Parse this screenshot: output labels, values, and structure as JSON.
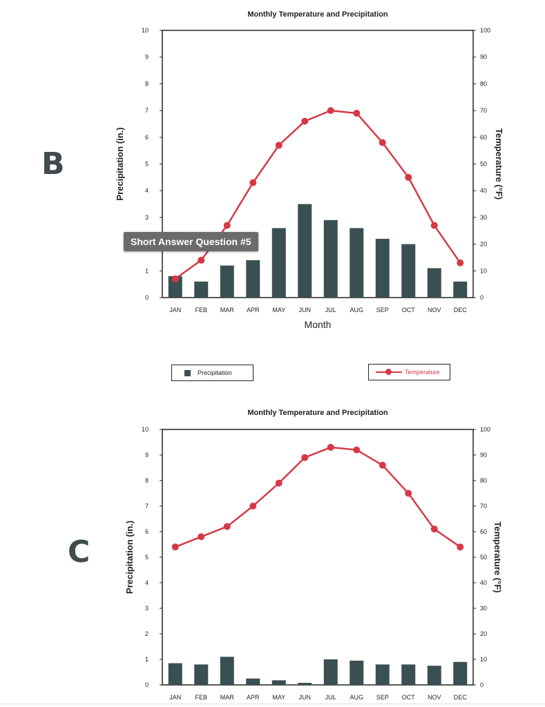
{
  "tooltip": {
    "text": "Short Answer Question #5"
  },
  "legend": {
    "precip_label": "Precipitation",
    "temp_label": "Temperature"
  },
  "colors": {
    "bar": "#3a4f52",
    "line": "#d73845",
    "axis": "#222222"
  },
  "chart_data": [
    {
      "panel": "B",
      "type": "bar+line",
      "title": "Monthly Temperature and Precipitation",
      "xlabel": "Month",
      "ylabel_left": "Precipitation (in.)",
      "ylabel_right": "Temperature (°F)",
      "categories": [
        "JAN",
        "FEB",
        "MAR",
        "APR",
        "MAY",
        "JUN",
        "JUL",
        "AUG",
        "SEP",
        "OCT",
        "NOV",
        "DEC"
      ],
      "ylim_left": [
        0,
        10
      ],
      "ylim_right": [
        0,
        100
      ],
      "series": [
        {
          "name": "Precipitation",
          "kind": "bar",
          "axis": "left",
          "values": [
            0.8,
            0.6,
            1.2,
            1.4,
            2.6,
            3.5,
            2.9,
            2.6,
            2.2,
            2.0,
            1.1,
            0.6
          ]
        },
        {
          "name": "Temperature",
          "kind": "line",
          "axis": "right",
          "values": [
            7,
            14,
            27,
            43,
            57,
            66,
            70,
            69,
            58,
            45,
            27,
            13
          ]
        }
      ]
    },
    {
      "panel": "C",
      "type": "bar+line",
      "title": "Monthly Temperature and Precipitation",
      "xlabel": "",
      "ylabel_left": "Precipitation (in.)",
      "ylabel_right": "Temperature (°F)",
      "categories": [
        "JAN",
        "FEB",
        "MAR",
        "APR",
        "MAY",
        "JUN",
        "JUL",
        "AUG",
        "SEP",
        "OCT",
        "NOV",
        "DEC"
      ],
      "ylim_left": [
        0,
        10
      ],
      "ylim_right": [
        0,
        100
      ],
      "series": [
        {
          "name": "Precipitation",
          "kind": "bar",
          "axis": "left",
          "values": [
            0.85,
            0.8,
            1.1,
            0.25,
            0.18,
            0.08,
            1.0,
            0.95,
            0.8,
            0.8,
            0.75,
            0.9
          ]
        },
        {
          "name": "Temperature",
          "kind": "line",
          "axis": "right",
          "values": [
            54,
            58,
            62,
            70,
            79,
            89,
            93,
            92,
            86,
            75,
            61,
            54
          ]
        }
      ]
    }
  ]
}
